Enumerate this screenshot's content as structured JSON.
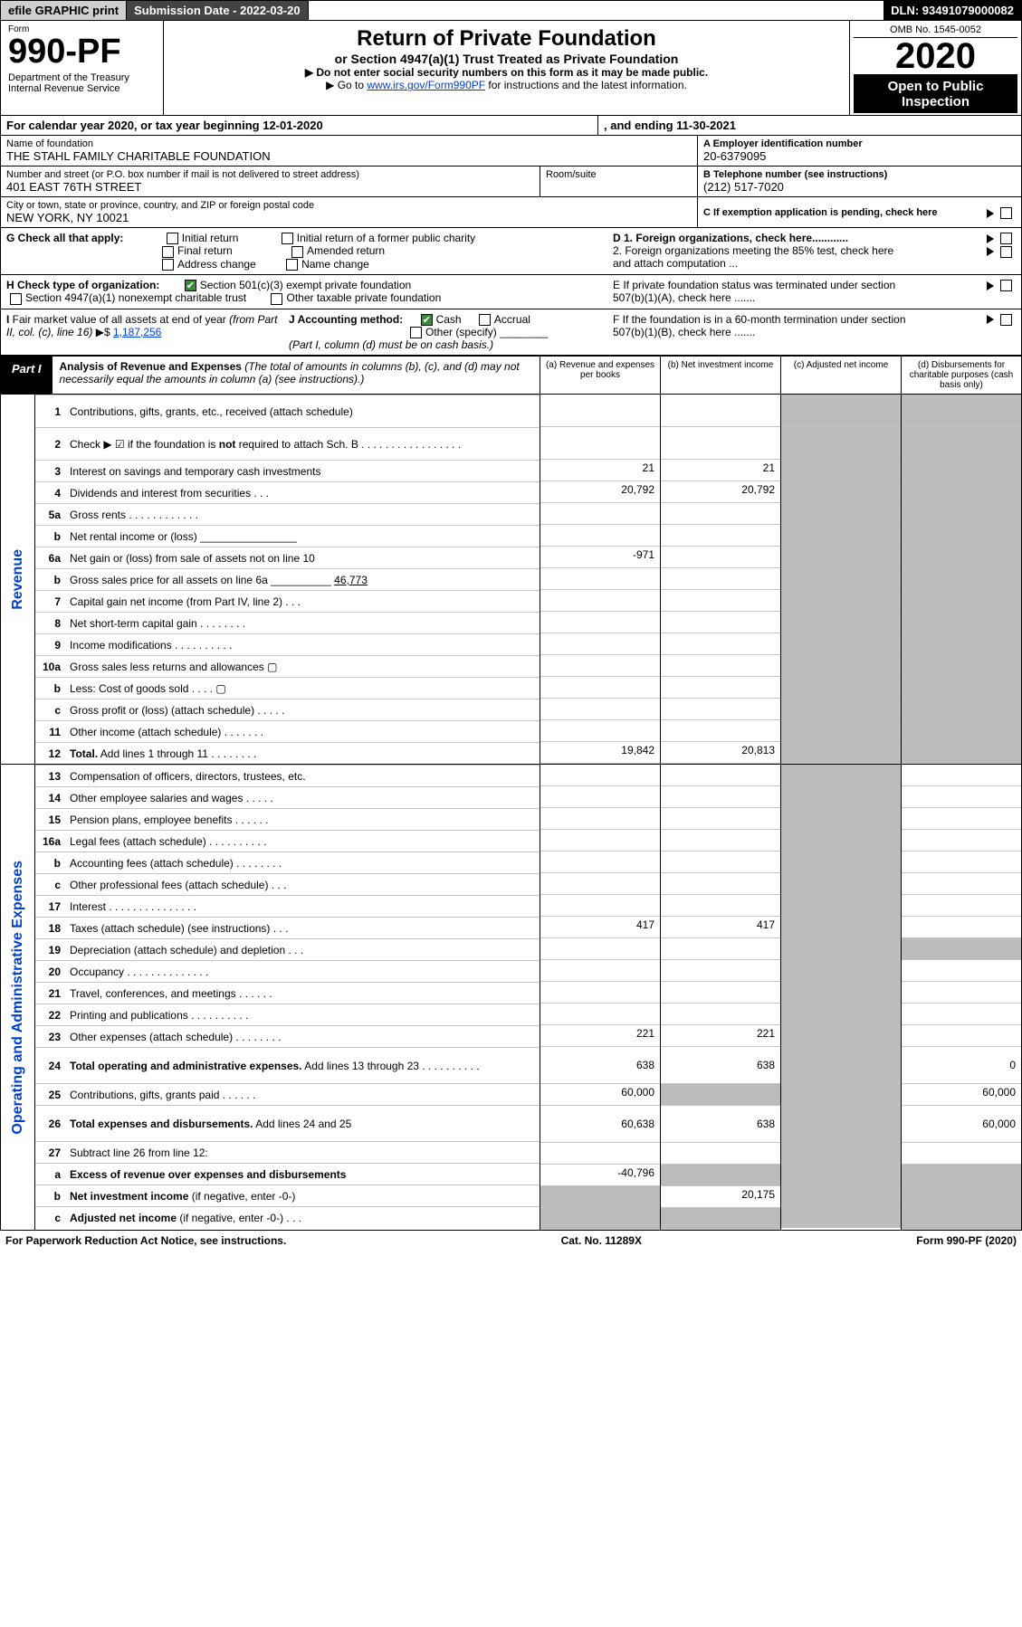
{
  "topbar": {
    "efile": "efile GRAPHIC print",
    "submission": "Submission Date - 2022-03-20",
    "dln": "DLN: 93491079000082"
  },
  "header": {
    "form_word": "Form",
    "form_number": "990-PF",
    "dept": "Department of the Treasury\nInternal Revenue Service",
    "title": "Return of Private Foundation",
    "subtitle": "or Section 4947(a)(1) Trust Treated as Private Foundation",
    "note1": "▶ Do not enter social security numbers on this form as it may be made public.",
    "note2_prefix": "▶ Go to ",
    "note2_link": "www.irs.gov/Form990PF",
    "note2_suffix": " for instructions and the latest information.",
    "omb": "OMB No. 1545-0052",
    "year": "2020",
    "otp": "Open to Public Inspection"
  },
  "period": {
    "text": "For calendar year 2020, or tax year beginning 12-01-2020",
    "ending": ", and ending 11-30-2021"
  },
  "id": {
    "name_lbl": "Name of foundation",
    "name": "THE STAHL FAMILY CHARITABLE FOUNDATION",
    "addr_lbl": "Number and street (or P.O. box number if mail is not delivered to street address)",
    "addr": "401 EAST 76TH STREET",
    "room_lbl": "Room/suite",
    "city_lbl": "City or town, state or province, country, and ZIP or foreign postal code",
    "city": "NEW YORK, NY  10021",
    "a_lbl": "A Employer identification number",
    "a": "20-6379095",
    "b_lbl": "B Telephone number (see instructions)",
    "b": "(212) 517-7020",
    "c_lbl": "C If exemption application is pending, check here",
    "d1": "D 1. Foreign organizations, check here............",
    "d2": "2. Foreign organizations meeting the 85% test, check here and attach computation ...",
    "e": "E  If private foundation status was terminated under section 507(b)(1)(A), check here .......",
    "f": "F  If the foundation is in a 60-month termination under section 507(b)(1)(B), check here .......",
    "g_lbl": "G Check all that apply:",
    "g_opts": [
      "Initial return",
      "Final return",
      "Address change",
      "Initial return of a former public charity",
      "Amended return",
      "Name change"
    ],
    "h_lbl": "H Check type of organization:",
    "h1": "Section 501(c)(3) exempt private foundation",
    "h2": "Section 4947(a)(1) nonexempt charitable trust",
    "h3": "Other taxable private foundation",
    "i_lbl": "I Fair market value of all assets at end of year (from Part II, col. (c), line 16) ▶$",
    "i": "1,187,256",
    "j_lbl": "J Accounting method:",
    "j_cash": "Cash",
    "j_accrual": "Accrual",
    "j_other": "Other (specify)",
    "j_note": "(Part I, column (d) must be on cash basis.)"
  },
  "part1": {
    "label": "Part I",
    "title": "Analysis of Revenue and Expenses",
    "paren": " (The total of amounts in columns (b), (c), and (d) may not necessarily equal the amounts in column (a) (see instructions).)",
    "cols": {
      "a": "(a)  Revenue and expenses per books",
      "b": "(b)  Net investment income",
      "c": "(c)  Adjusted net income",
      "d": "(d)  Disbursements for charitable purposes (cash basis only)"
    },
    "sections": [
      {
        "side": "Revenue",
        "rows": [
          {
            "n": "1",
            "t": "Contributions, gifts, grants, etc., received (attach schedule)"
          },
          {
            "n": "2",
            "t": "Check ▶ ☑ if the foundation is <b>not</b> required to attach Sch. B   .  .  .  .  .  .  .  .  .  .  .  .  .  .  .  .  .",
            "has_check": true
          },
          {
            "n": "3",
            "t": "Interest on savings and temporary cash investments",
            "a": "21",
            "b": "21"
          },
          {
            "n": "4",
            "t": "Dividends and interest from securities    .   .   .",
            "a": "20,792",
            "b": "20,792"
          },
          {
            "n": "5a",
            "t": "Gross rents   .   .   .   .   .   .   .   .   .   .   .   ."
          },
          {
            "n": "b",
            "t": "Net rental income or (loss)  ________________"
          },
          {
            "n": "6a",
            "t": "Net gain or (loss) from sale of assets not on line 10",
            "a": "-971"
          },
          {
            "n": "b",
            "t": "Gross sales price for all assets on line 6a __________",
            "inline": "46,773"
          },
          {
            "n": "7",
            "t": "Capital gain net income (from Part IV, line 2)    .   .   ."
          },
          {
            "n": "8",
            "t": "Net short-term capital gain   .   .   .   .   .   .   .   ."
          },
          {
            "n": "9",
            "t": "Income modifications   .   .   .   .   .   .   .   .   .   ."
          },
          {
            "n": "10a",
            "t": "Gross sales less returns and allowances  ▢"
          },
          {
            "n": "b",
            "t": "Less: Cost of goods sold     .   .   .   .   ▢"
          },
          {
            "n": "c",
            "t": "Gross profit or (loss) (attach schedule)     .   .   .   .   ."
          },
          {
            "n": "11",
            "t": "Other income (attach schedule)    .   .   .   .   .   .   ."
          },
          {
            "n": "12",
            "t": "<b>Total.</b> Add lines 1 through 11   .   .   .   .   .   .   .   .",
            "a": "19,842",
            "b": "20,813",
            "total": true
          }
        ]
      },
      {
        "side": "Operating and Administrative Expenses",
        "rows": [
          {
            "n": "13",
            "t": "Compensation of officers, directors, trustees, etc."
          },
          {
            "n": "14",
            "t": "Other employee salaries and wages    .   .   .   .   ."
          },
          {
            "n": "15",
            "t": "Pension plans, employee benefits   .   .   .   .   .   ."
          },
          {
            "n": "16a",
            "t": "Legal fees (attach schedule)  .  .  .  .  .  .  .  .  .  ."
          },
          {
            "n": "b",
            "t": "Accounting fees (attach schedule)  .  .  .  .  .  .  .  ."
          },
          {
            "n": "c",
            "t": "Other professional fees (attach schedule)     .   .   ."
          },
          {
            "n": "17",
            "t": "Interest   .   .   .   .   .   .   .   .   .   .   .   .   .   .   ."
          },
          {
            "n": "18",
            "t": "Taxes (attach schedule) (see instructions)      .   .   .",
            "a": "417",
            "b": "417"
          },
          {
            "n": "19",
            "t": "Depreciation (attach schedule) and depletion    .   .   ."
          },
          {
            "n": "20",
            "t": "Occupancy   .   .   .   .   .   .   .   .   .   .   .   .   .   ."
          },
          {
            "n": "21",
            "t": "Travel, conferences, and meetings   .   .   .   .   .   ."
          },
          {
            "n": "22",
            "t": "Printing and publications   .   .   .   .   .   .   .   .   .   ."
          },
          {
            "n": "23",
            "t": "Other expenses (attach schedule)  .  .  .  .  .  .  .  .",
            "a": "221",
            "b": "221"
          },
          {
            "n": "24",
            "t": "<b>Total operating and administrative expenses.</b> Add lines 13 through 23   .   .   .   .   .   .   .   .   .   .",
            "a": "638",
            "b": "638",
            "d": "0",
            "total": true,
            "tall": true
          },
          {
            "n": "25",
            "t": "Contributions, gifts, grants paid     .   .   .   .   .   .",
            "a": "60,000",
            "d": "60,000",
            "bfill": true
          },
          {
            "n": "26",
            "t": "<b>Total expenses and disbursements.</b> Add lines 24 and 25",
            "a": "60,638",
            "b": "638",
            "d": "60,000",
            "total": true,
            "tall": true
          },
          {
            "n": "27",
            "t": "Subtract line 26 from line 12:",
            "nocols": true
          },
          {
            "n": "a",
            "t": "<b>Excess of revenue over expenses and disbursements</b>",
            "a": "-40,796",
            "bfill": true,
            "cfill": true,
            "dfill": true
          },
          {
            "n": "b",
            "t": "<b>Net investment income</b> (if negative, enter -0-)",
            "b": "20,175",
            "afill": true,
            "cfill": true,
            "dfill": true
          },
          {
            "n": "c",
            "t": "<b>Adjusted net income</b> (if negative, enter -0-)   .   .   .",
            "afill": true,
            "bfill": true,
            "dfill": true
          }
        ]
      }
    ]
  },
  "footer": {
    "left": "For Paperwork Reduction Act Notice, see instructions.",
    "mid": "Cat. No. 11289X",
    "right": "Form 990-PF (2020)"
  },
  "style": {
    "link_color": "#0040d0",
    "fill_color": "#bcbcbc"
  }
}
